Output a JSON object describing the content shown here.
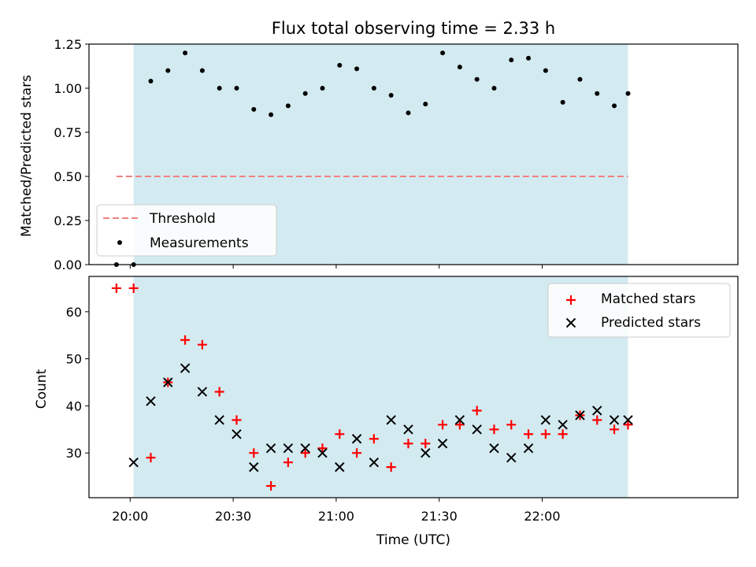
{
  "chart_data": [
    {
      "type": "scatter",
      "title": "Flux total observing time = 2.33 h",
      "ylabel": "Matched/Predicted stars",
      "xlabel": "",
      "xlim": [
        "19:48",
        "22:57"
      ],
      "ylim": [
        0,
        1.25
      ],
      "yticks": [
        0.0,
        0.25,
        0.5,
        0.75,
        1.0,
        1.25
      ],
      "ytick_labels": [
        "0.00",
        "0.25",
        "0.50",
        "0.75",
        "1.00",
        "1.25"
      ],
      "shaded_interval": [
        "20:01",
        "22:25"
      ],
      "shade_color": "#d3eaf0",
      "threshold": {
        "name": "Threshold",
        "value": 0.5,
        "x": [
          "19:56",
          "22:25"
        ],
        "color": "#f08080"
      },
      "series": [
        {
          "name": "Measurements",
          "color": "#000000",
          "x": [
            "19:56",
            "20:01",
            "20:06",
            "20:11",
            "20:16",
            "20:21",
            "20:26",
            "20:31",
            "20:36",
            "20:41",
            "20:46",
            "20:51",
            "20:56",
            "21:01",
            "21:06",
            "21:11",
            "21:16",
            "21:21",
            "21:26",
            "21:31",
            "21:36",
            "21:41",
            "21:46",
            "21:51",
            "21:56",
            "22:01",
            "22:06",
            "22:11",
            "22:16",
            "22:21",
            "22:25"
          ],
          "y": [
            0.0,
            0.0,
            1.04,
            1.1,
            1.2,
            1.1,
            1.0,
            1.0,
            0.88,
            0.85,
            0.9,
            0.97,
            1.0,
            1.13,
            1.11,
            1.0,
            0.96,
            0.86,
            0.91,
            1.2,
            1.12,
            1.05,
            1.0,
            1.16,
            1.17,
            1.1,
            0.92,
            1.05,
            0.97,
            0.9,
            0.97
          ]
        }
      ],
      "legend": {
        "position": "lower-left",
        "entries": [
          "Threshold",
          "Measurements"
        ]
      }
    },
    {
      "type": "scatter",
      "title": "",
      "ylabel": "Count",
      "xlabel": "Time (UTC)",
      "xlim": [
        "19:48",
        "22:57"
      ],
      "ylim": [
        20.5,
        67.5
      ],
      "yticks": [
        30,
        40,
        50,
        60
      ],
      "ytick_labels": [
        "30",
        "40",
        "50",
        "60"
      ],
      "xticks": [
        "20:00",
        "20:30",
        "21:00",
        "21:30",
        "22:00"
      ],
      "shaded_interval": [
        "20:01",
        "22:25"
      ],
      "shade_color": "#d3eaf0",
      "series": [
        {
          "name": "Matched stars",
          "marker": "plus",
          "color": "#ff0000",
          "x": [
            "19:56",
            "20:01",
            "20:06",
            "20:11",
            "20:16",
            "20:21",
            "20:26",
            "20:31",
            "20:36",
            "20:41",
            "20:46",
            "20:51",
            "20:56",
            "21:01",
            "21:06",
            "21:11",
            "21:16",
            "21:21",
            "21:26",
            "21:31",
            "21:36",
            "21:41",
            "21:46",
            "21:51",
            "21:56",
            "22:01",
            "22:06",
            "22:11",
            "22:16",
            "22:21",
            "22:25"
          ],
          "y": [
            65,
            65,
            29,
            45,
            54,
            53,
            43,
            37,
            30,
            23,
            28,
            30,
            31,
            34,
            30,
            33,
            27,
            32,
            32,
            36,
            36,
            39,
            35,
            36,
            34,
            34,
            34,
            38,
            37,
            35,
            36
          ]
        },
        {
          "name": "Predicted stars",
          "marker": "x",
          "color": "#000000",
          "x": [
            "20:01",
            "20:06",
            "20:11",
            "20:16",
            "20:21",
            "20:26",
            "20:31",
            "20:36",
            "20:41",
            "20:46",
            "20:51",
            "20:56",
            "21:01",
            "21:06",
            "21:11",
            "21:16",
            "21:21",
            "21:26",
            "21:31",
            "21:36",
            "21:41",
            "21:46",
            "21:51",
            "21:56",
            "22:01",
            "22:06",
            "22:11",
            "22:16",
            "22:21",
            "22:25"
          ],
          "y": [
            28,
            41,
            45,
            48,
            43,
            37,
            34,
            27,
            31,
            31,
            31,
            30,
            27,
            33,
            28,
            37,
            35,
            30,
            32,
            37,
            35,
            31,
            29,
            31,
            37,
            36,
            38,
            39,
            37,
            37
          ]
        }
      ],
      "legend": {
        "position": "top-right",
        "entries": [
          "Matched stars",
          "Predicted stars"
        ]
      }
    }
  ]
}
